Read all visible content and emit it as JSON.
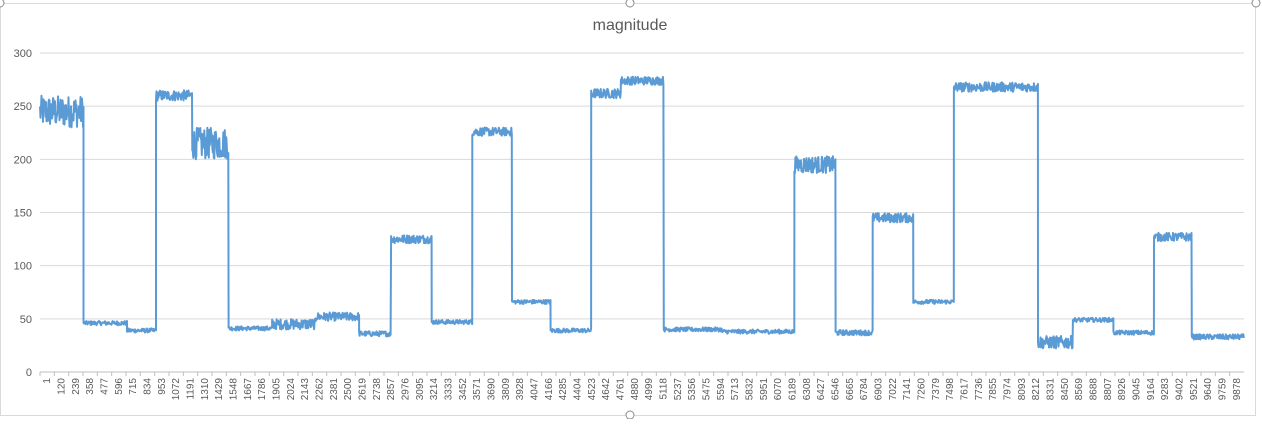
{
  "chart_data": {
    "type": "line",
    "title": "magnitude",
    "xlabel": "",
    "ylabel": "",
    "ylim": [
      0,
      300
    ],
    "xlim": [
      1,
      9878
    ],
    "yticks": [
      0,
      50,
      100,
      150,
      200,
      250,
      300
    ],
    "x_tick_labels": [
      "1",
      "120",
      "239",
      "358",
      "477",
      "596",
      "715",
      "834",
      "953",
      "1072",
      "1191",
      "1310",
      "1429",
      "1548",
      "1667",
      "1786",
      "1905",
      "2024",
      "2143",
      "2262",
      "2381",
      "2500",
      "2619",
      "2738",
      "2857",
      "2976",
      "3095",
      "3214",
      "3333",
      "3452",
      "3571",
      "3690",
      "3809",
      "3928",
      "4047",
      "4166",
      "4285",
      "4404",
      "4523",
      "4642",
      "4761",
      "4880",
      "4999",
      "5118",
      "5237",
      "5356",
      "5475",
      "5594",
      "5713",
      "5832",
      "5951",
      "6070",
      "6189",
      "6308",
      "6427",
      "6546",
      "6665",
      "6784",
      "6903",
      "7022",
      "7141",
      "7260",
      "7379",
      "7498",
      "7617",
      "7736",
      "7855",
      "7974",
      "8093",
      "8212",
      "8331",
      "8450",
      "8569",
      "8688",
      "8807",
      "8926",
      "9045",
      "9164",
      "9283",
      "9402",
      "9521",
      "9640",
      "9759",
      "9878"
    ],
    "grid": "horizontal",
    "legend": "none",
    "series": [
      {
        "color": "#5B9BD5",
        "segments": [
          {
            "x_start": 1,
            "x_end": 358,
            "level": 245,
            "noise": 30
          },
          {
            "x_start": 358,
            "x_end": 715,
            "level": 46,
            "noise": 4
          },
          {
            "x_start": 715,
            "x_end": 953,
            "level": 39,
            "noise": 4
          },
          {
            "x_start": 953,
            "x_end": 1250,
            "level": 260,
            "noise": 10
          },
          {
            "x_start": 1250,
            "x_end": 1548,
            "level": 215,
            "noise": 30
          },
          {
            "x_start": 1548,
            "x_end": 1905,
            "level": 41,
            "noise": 4
          },
          {
            "x_start": 1905,
            "x_end": 2262,
            "level": 45,
            "noise": 10
          },
          {
            "x_start": 2262,
            "x_end": 2619,
            "level": 52,
            "noise": 8
          },
          {
            "x_start": 2619,
            "x_end": 2881,
            "level": 36,
            "noise": 5
          },
          {
            "x_start": 2881,
            "x_end": 3214,
            "level": 125,
            "noise": 8
          },
          {
            "x_start": 3214,
            "x_end": 3547,
            "level": 47,
            "noise": 4
          },
          {
            "x_start": 3547,
            "x_end": 3873,
            "level": 226,
            "noise": 8
          },
          {
            "x_start": 3873,
            "x_end": 4190,
            "level": 66,
            "noise": 4
          },
          {
            "x_start": 4190,
            "x_end": 4523,
            "level": 39,
            "noise": 4
          },
          {
            "x_start": 4523,
            "x_end": 4766,
            "level": 262,
            "noise": 9
          },
          {
            "x_start": 4766,
            "x_end": 5118,
            "level": 274,
            "noise": 8
          },
          {
            "x_start": 5118,
            "x_end": 5594,
            "level": 40,
            "noise": 4
          },
          {
            "x_start": 5594,
            "x_end": 6190,
            "level": 38,
            "noise": 4
          },
          {
            "x_start": 6190,
            "x_end": 6528,
            "level": 195,
            "noise": 16
          },
          {
            "x_start": 6528,
            "x_end": 6832,
            "level": 37,
            "noise": 5
          },
          {
            "x_start": 6832,
            "x_end": 7165,
            "level": 145,
            "noise": 9
          },
          {
            "x_start": 7165,
            "x_end": 7498,
            "level": 66,
            "noise": 4
          },
          {
            "x_start": 7498,
            "x_end": 8188,
            "level": 268,
            "noise": 9
          },
          {
            "x_start": 8188,
            "x_end": 8474,
            "level": 28,
            "noise": 12
          },
          {
            "x_start": 8474,
            "x_end": 8807,
            "level": 49,
            "noise": 4
          },
          {
            "x_start": 8807,
            "x_end": 9140,
            "level": 37,
            "noise": 4
          },
          {
            "x_start": 9140,
            "x_end": 9450,
            "level": 127,
            "noise": 8
          },
          {
            "x_start": 9450,
            "x_end": 9878,
            "level": 33,
            "noise": 5
          }
        ]
      }
    ]
  }
}
